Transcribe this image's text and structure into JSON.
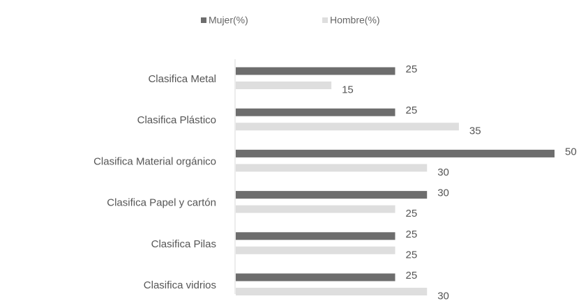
{
  "chart_data": {
    "type": "bar",
    "orientation": "horizontal",
    "categories": [
      "Clasifica Metal",
      "Clasifica Plástico",
      "Clasifica Material orgánico",
      "Clasifica Papel y cartón",
      "Clasifica Pilas",
      "Clasifica vidrios"
    ],
    "series": [
      {
        "name": "Mujer(%)",
        "color": "#6d6d6d",
        "values": [
          25,
          25,
          50,
          30,
          25,
          25
        ]
      },
      {
        "name": "Hombre(%)",
        "color": "#dedede",
        "values": [
          15,
          35,
          30,
          25,
          25,
          30
        ]
      }
    ],
    "xlim": [
      0,
      50
    ],
    "legend": "top"
  }
}
